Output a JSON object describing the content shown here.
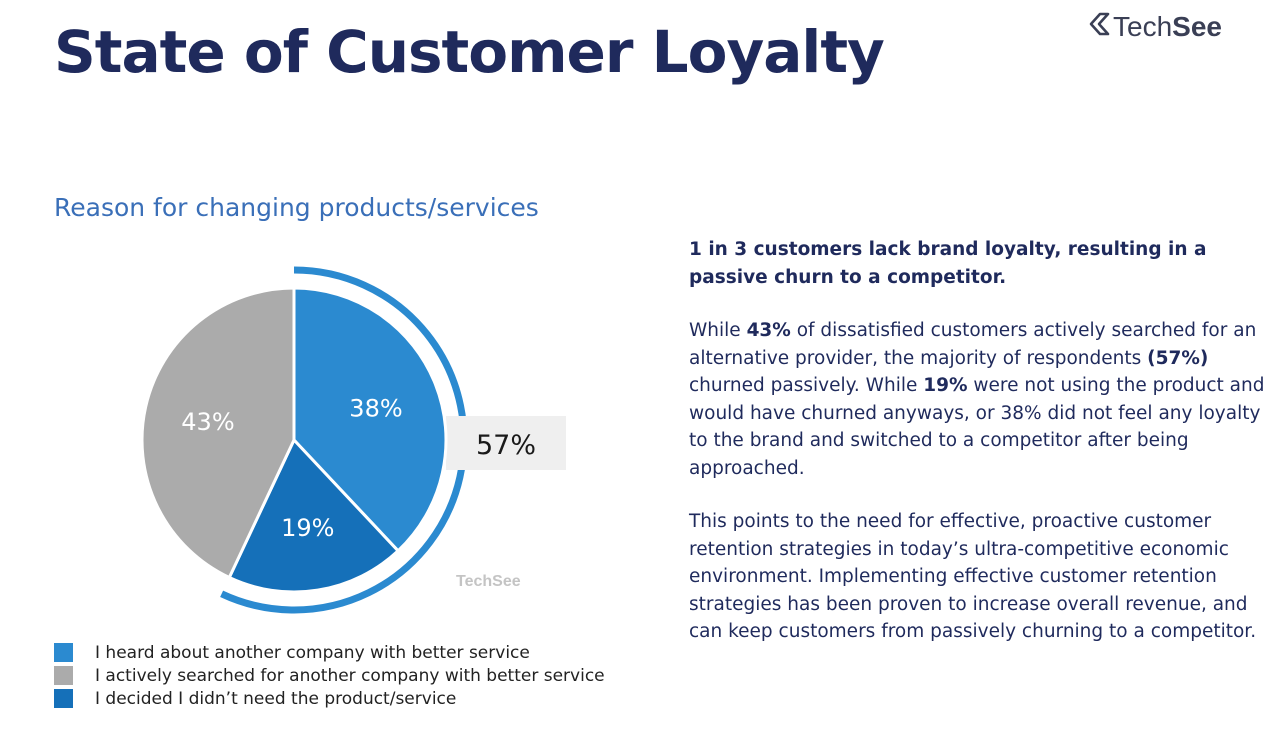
{
  "page": {
    "title": "State of Customer Loyalty",
    "logo": {
      "prefix": "Tech",
      "suffix": "See",
      "icon": "techsee-chevron-logo-icon"
    }
  },
  "chart_data": {
    "type": "pie",
    "title": "Reason for changing products/services",
    "slices": [
      {
        "label": "I heard about another company with better service",
        "value": 38,
        "display": "38%",
        "color": "#2b8ad0"
      },
      {
        "label": "I decided I didn’t need the product/service",
        "value": 19,
        "display": "19%",
        "color": "#1570b9"
      },
      {
        "label": "I actively searched for another company with better service",
        "value": 43,
        "display": "43%",
        "color": "#ababab"
      }
    ],
    "legend_order": [
      0,
      2,
      1
    ],
    "annotation": {
      "label": "57%",
      "value": 57,
      "bracket_color": "#2b8ad0"
    },
    "watermark": "TechSee"
  },
  "panel": {
    "lead": "1 in 3 customers lack brand loyalty, resulting in a passive churn to a competitor.",
    "para1": [
      {
        "text": "While ",
        "bold": false
      },
      {
        "text": "43%",
        "bold": true
      },
      {
        "text": " of dissatisfied customers actively searched for an alternative provider, the majority of respondents ",
        "bold": false
      },
      {
        "text": "(57%)",
        "bold": true
      },
      {
        "text": " churned passively. While ",
        "bold": false
      },
      {
        "text": "19%",
        "bold": true
      },
      {
        "text": " were not using the product and would have churned anyways, or 38% did not feel any loyalty to the brand and switched to a competitor after being approached.",
        "bold": false
      }
    ],
    "para2": "This points to the need for effective, proactive customer retention strategies in today’s ultra-competitive economic environment. Implementing effective customer retention strategies has been proven to increase overall revenue, and can keep customers from passively churning to a competitor."
  }
}
